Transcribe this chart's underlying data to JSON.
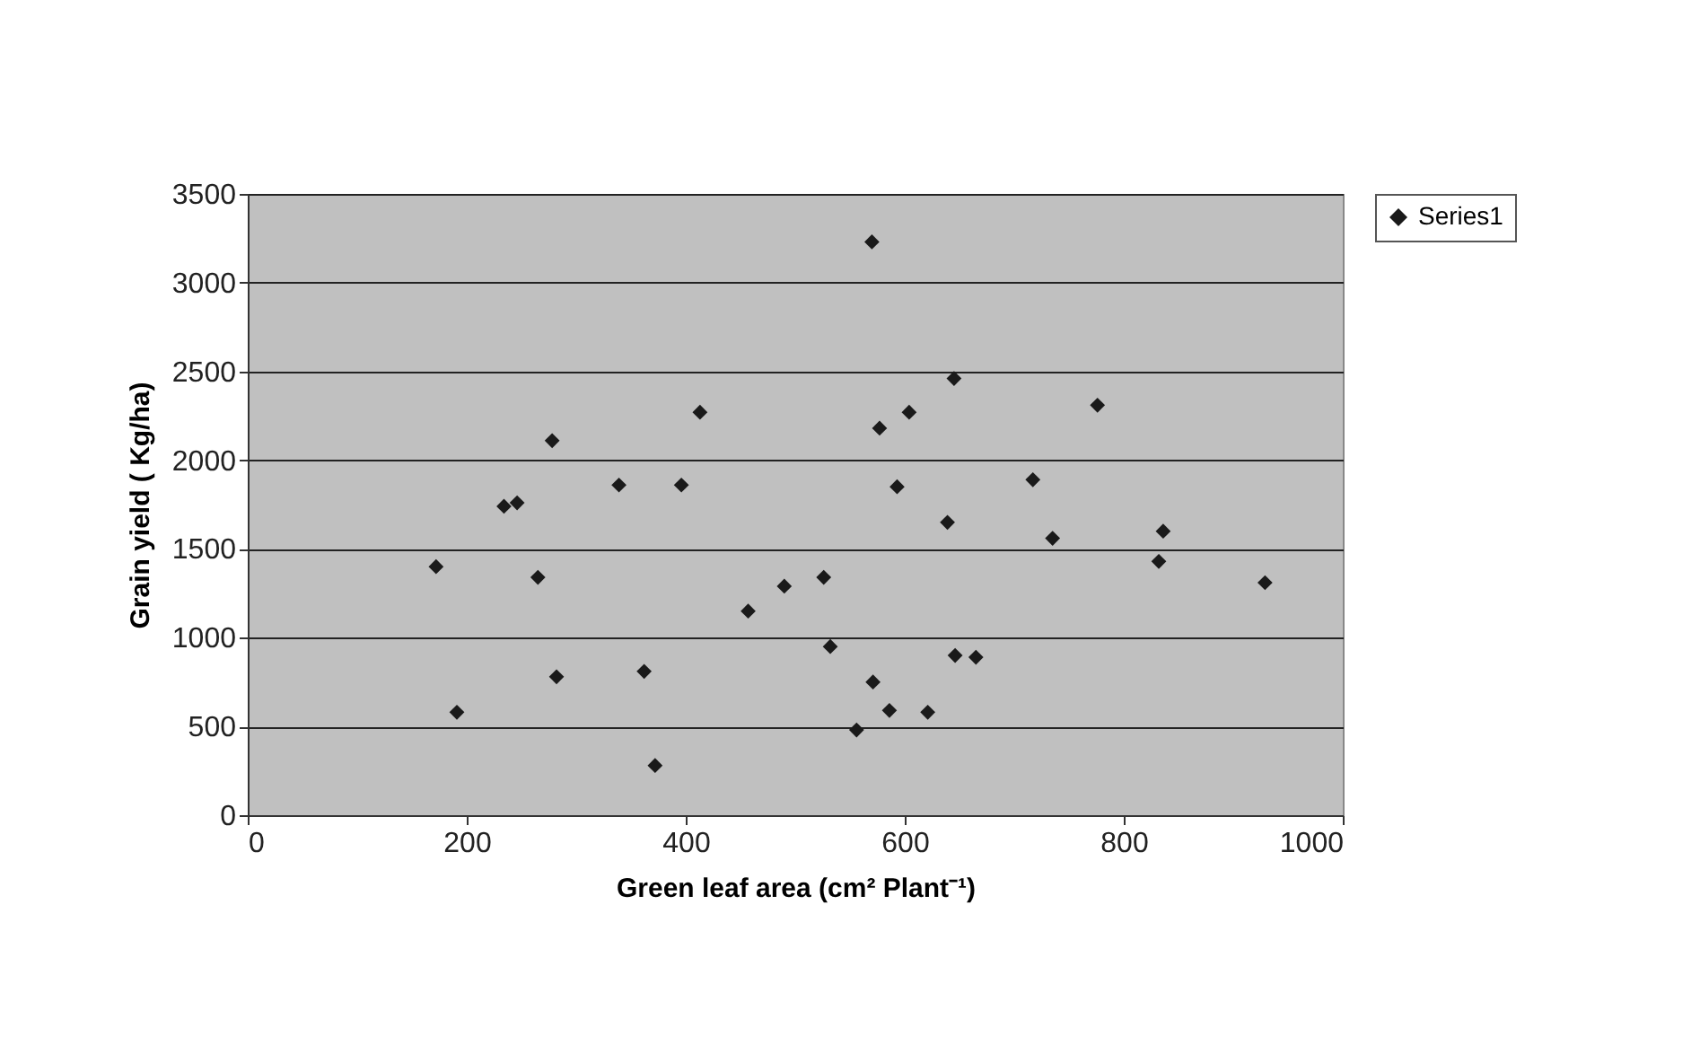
{
  "chart_data": {
    "type": "scatter",
    "xlabel": "Green leaf area (cm² Plant⁻¹)",
    "ylabel": "Grain yield ( Kg/ha)",
    "x": [
      172,
      191,
      234,
      246,
      265,
      278,
      282,
      339,
      362,
      372,
      396,
      413,
      457,
      490,
      526,
      532,
      556,
      570,
      571,
      577,
      586,
      593,
      604,
      621,
      639,
      645,
      646,
      665,
      717,
      735,
      776,
      832,
      836,
      929
    ],
    "series": [
      {
        "name": "Series1",
        "color": "#1a1a1a",
        "values": [
          1400,
          580,
          1740,
          1760,
          1340,
          2110,
          780,
          1860,
          810,
          280,
          1860,
          2270,
          1150,
          1290,
          1340,
          950,
          480,
          3230,
          750,
          2180,
          590,
          1850,
          2270,
          580,
          1650,
          2460,
          900,
          890,
          1890,
          1560,
          2310,
          1430,
          1600,
          1310
        ]
      }
    ],
    "xlim": [
      0,
      1000
    ],
    "xticks": [
      0,
      200,
      400,
      600,
      800,
      1000
    ],
    "ylim": [
      0,
      3500
    ],
    "yticks": [
      0,
      500,
      1000,
      1500,
      2000,
      2500,
      3000,
      3500
    ],
    "grid": "y",
    "legend": "right",
    "marker": "diamond"
  }
}
